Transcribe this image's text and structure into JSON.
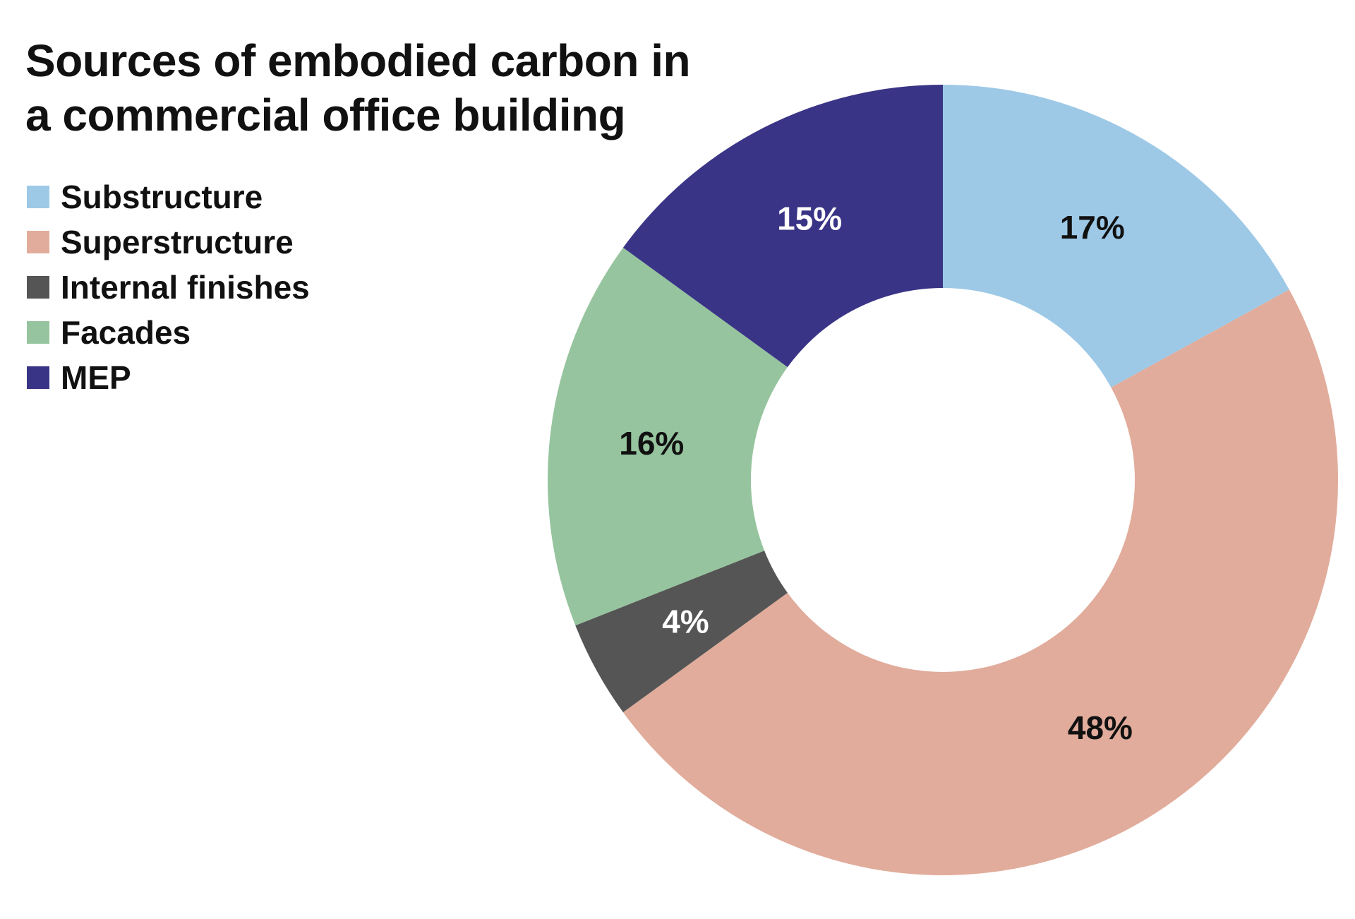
{
  "chart_data": {
    "type": "pie",
    "style": "donut",
    "title": "Sources of embodied carbon in a commercial office building",
    "categories": [
      "Substructure",
      "Superstructure",
      "Internal finishes",
      "Facades",
      "MEP"
    ],
    "values": [
      17,
      48,
      4,
      16,
      15
    ],
    "data_labels": [
      "17%",
      "48%",
      "4%",
      "16%",
      "15%"
    ],
    "colors": [
      "#9dc9e7",
      "#e1ac9b",
      "#555555",
      "#96c49e",
      "#3a3486"
    ],
    "label_colors": [
      "#111111",
      "#111111",
      "#ffffff",
      "#111111",
      "#ffffff"
    ],
    "legend_placement": "top-left",
    "start": "12 o'clock, clockwise"
  }
}
